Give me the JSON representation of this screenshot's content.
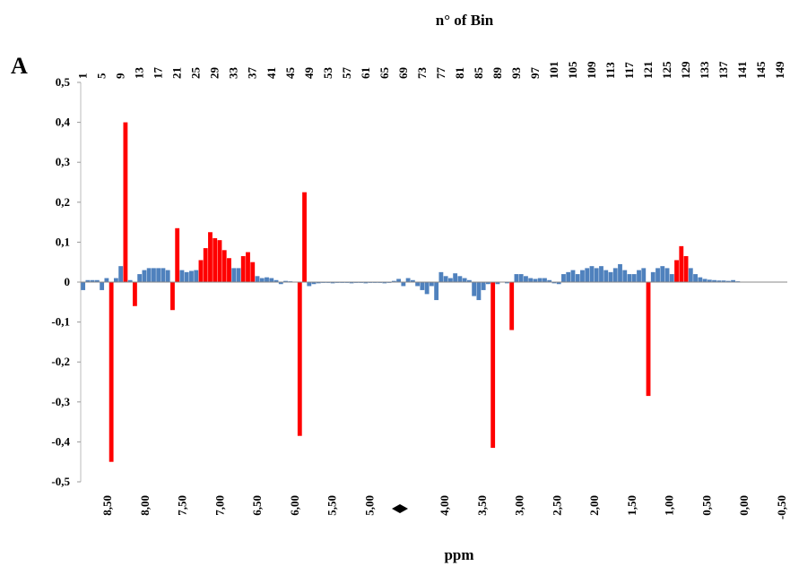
{
  "chart_data": {
    "type": "bar",
    "panel_label": "A",
    "title": "n° of Bin",
    "xlabel": "ppm",
    "x": [
      1,
      2,
      3,
      4,
      5,
      6,
      7,
      8,
      9,
      10,
      11,
      12,
      13,
      14,
      15,
      16,
      17,
      18,
      19,
      20,
      21,
      22,
      23,
      24,
      25,
      26,
      27,
      28,
      29,
      30,
      31,
      32,
      33,
      34,
      35,
      36,
      37,
      38,
      39,
      40,
      41,
      42,
      43,
      44,
      45,
      46,
      47,
      48,
      49,
      50,
      51,
      52,
      53,
      54,
      55,
      56,
      57,
      58,
      59,
      60,
      61,
      62,
      63,
      64,
      65,
      66,
      67,
      68,
      69,
      70,
      71,
      72,
      73,
      74,
      75,
      76,
      77,
      78,
      79,
      80,
      81,
      82,
      83,
      84,
      85,
      86,
      87,
      88,
      89,
      90,
      91,
      92,
      93,
      94,
      95,
      96,
      97,
      98,
      99,
      100,
      101,
      102,
      103,
      104,
      105,
      106,
      107,
      108,
      109,
      110,
      111,
      112,
      113,
      114,
      115,
      116,
      117,
      118,
      119,
      120,
      121,
      122,
      123,
      124,
      125,
      126,
      127,
      128,
      129,
      130,
      131,
      132,
      133,
      134,
      135,
      136,
      137,
      138,
      139,
      140,
      141,
      142,
      143,
      144,
      145,
      146,
      147,
      148,
      149,
      150
    ],
    "values": [
      -0.02,
      0.005,
      0.005,
      0.005,
      -0.02,
      0.01,
      -0.45,
      0.01,
      0.04,
      0.4,
      0.005,
      -0.06,
      0.02,
      0.03,
      0.035,
      0.035,
      0.035,
      0.035,
      0.03,
      -0.07,
      0.135,
      0.03,
      0.025,
      0.028,
      0.03,
      0.055,
      0.085,
      0.125,
      0.11,
      0.105,
      0.08,
      0.06,
      0.035,
      0.035,
      0.065,
      0.075,
      0.05,
      0.015,
      0.01,
      0.012,
      0.01,
      0.005,
      -0.005,
      0.003,
      0.002,
      0.001,
      -0.385,
      0.225,
      -0.01,
      -0.005,
      -0.003,
      -0.002,
      -0.002,
      -0.003,
      -0.002,
      -0.002,
      -0.002,
      -0.003,
      -0.002,
      -0.002,
      -0.003,
      -0.002,
      -0.002,
      -0.002,
      -0.003,
      -0.002,
      0.003,
      0.008,
      -0.01,
      0.01,
      0.005,
      -0.01,
      -0.02,
      -0.03,
      -0.01,
      -0.045,
      0.025,
      0.015,
      0.01,
      0.022,
      0.015,
      0.01,
      0.005,
      -0.035,
      -0.045,
      -0.02,
      -0.005,
      -0.415,
      -0.005,
      0,
      -0.003,
      -0.12,
      0.02,
      0.02,
      0.015,
      0.01,
      0.008,
      0.01,
      0.01,
      0.005,
      -0.003,
      -0.005,
      0.02,
      0.025,
      0.03,
      0.02,
      0.03,
      0.035,
      0.04,
      0.035,
      0.04,
      0.03,
      0.025,
      0.035,
      0.045,
      0.03,
      0.02,
      0.02,
      0.03,
      0.035,
      -0.285,
      0.025,
      0.035,
      0.04,
      0.035,
      0.02,
      0.055,
      0.09,
      0.065,
      0.035,
      0.02,
      0.012,
      0.008,
      0.006,
      0.005,
      0.004,
      0.004,
      0.003,
      0.005,
      0.002,
      0.001,
      0.001,
      0.001,
      0.001,
      0.001,
      0,
      0,
      0,
      0,
      0
    ],
    "colors": [
      "#4f81bd",
      "#4f81bd",
      "#4f81bd",
      "#4f81bd",
      "#4f81bd",
      "#4f81bd",
      "#ff0000",
      "#4f81bd",
      "#4f81bd",
      "#ff0000",
      "#4f81bd",
      "#ff0000",
      "#4f81bd",
      "#4f81bd",
      "#4f81bd",
      "#4f81bd",
      "#4f81bd",
      "#4f81bd",
      "#4f81bd",
      "#ff0000",
      "#ff0000",
      "#4f81bd",
      "#4f81bd",
      "#4f81bd",
      "#4f81bd",
      "#ff0000",
      "#ff0000",
      "#ff0000",
      "#ff0000",
      "#ff0000",
      "#ff0000",
      "#ff0000",
      "#4f81bd",
      "#4f81bd",
      "#ff0000",
      "#ff0000",
      "#ff0000",
      "#4f81bd",
      "#4f81bd",
      "#4f81bd",
      "#4f81bd",
      "#4f81bd",
      "#4f81bd",
      "#4f81bd",
      "#4f81bd",
      "#4f81bd",
      "#ff0000",
      "#ff0000",
      "#4f81bd",
      "#4f81bd",
      "#4f81bd",
      "#4f81bd",
      "#4f81bd",
      "#4f81bd",
      "#4f81bd",
      "#4f81bd",
      "#4f81bd",
      "#4f81bd",
      "#4f81bd",
      "#4f81bd",
      "#4f81bd",
      "#4f81bd",
      "#4f81bd",
      "#4f81bd",
      "#4f81bd",
      "#4f81bd",
      "#4f81bd",
      "#4f81bd",
      "#4f81bd",
      "#4f81bd",
      "#4f81bd",
      "#4f81bd",
      "#4f81bd",
      "#4f81bd",
      "#4f81bd",
      "#4f81bd",
      "#4f81bd",
      "#4f81bd",
      "#4f81bd",
      "#4f81bd",
      "#4f81bd",
      "#4f81bd",
      "#4f81bd",
      "#4f81bd",
      "#4f81bd",
      "#4f81bd",
      "#4f81bd",
      "#ff0000",
      "#4f81bd",
      "#4f81bd",
      "#4f81bd",
      "#ff0000",
      "#4f81bd",
      "#4f81bd",
      "#4f81bd",
      "#4f81bd",
      "#4f81bd",
      "#4f81bd",
      "#4f81bd",
      "#4f81bd",
      "#4f81bd",
      "#4f81bd",
      "#4f81bd",
      "#4f81bd",
      "#4f81bd",
      "#4f81bd",
      "#4f81bd",
      "#4f81bd",
      "#4f81bd",
      "#4f81bd",
      "#4f81bd",
      "#4f81bd",
      "#4f81bd",
      "#4f81bd",
      "#4f81bd",
      "#4f81bd",
      "#4f81bd",
      "#4f81bd",
      "#4f81bd",
      "#4f81bd",
      "#ff0000",
      "#4f81bd",
      "#4f81bd",
      "#4f81bd",
      "#4f81bd",
      "#4f81bd",
      "#ff0000",
      "#ff0000",
      "#ff0000",
      "#4f81bd",
      "#4f81bd",
      "#4f81bd",
      "#4f81bd",
      "#4f81bd",
      "#4f81bd",
      "#4f81bd",
      "#4f81bd",
      "#4f81bd",
      "#4f81bd",
      "#4f81bd",
      "#4f81bd",
      "#4f81bd",
      "#4f81bd",
      "#4f81bd",
      "#4f81bd",
      "#4f81bd",
      "#4f81bd",
      "#4f81bd",
      "#4f81bd",
      "#4f81bd"
    ],
    "xlim": [
      0.5,
      150.5
    ],
    "xticks": [
      1,
      5,
      9,
      13,
      17,
      21,
      25,
      29,
      33,
      37,
      41,
      45,
      49,
      53,
      57,
      61,
      65,
      69,
      73,
      77,
      81,
      85,
      89,
      93,
      97,
      101,
      105,
      109,
      113,
      117,
      121,
      125,
      129,
      133,
      137,
      141,
      145,
      149
    ],
    "ylim": [
      -0.5,
      0.5
    ],
    "yticks": [
      {
        "value": 0.5,
        "label": "0,5"
      },
      {
        "value": 0.4,
        "label": "0,4"
      },
      {
        "value": 0.3,
        "label": "0,3"
      },
      {
        "value": 0.2,
        "label": "0,2"
      },
      {
        "value": 0.1,
        "label": "0,1"
      },
      0,
      {
        "value": -0.1,
        "label": "-0,1"
      },
      {
        "value": -0.2,
        "label": "-0,2"
      },
      {
        "value": -0.3,
        "label": "-0,3"
      },
      {
        "value": -0.4,
        "label": "-0,4"
      },
      {
        "value": -0.5,
        "label": "-0,5"
      }
    ],
    "ppm_labels": [
      "8,50",
      "8,00",
      "7,50",
      "7,00",
      "6,50",
      "6,00",
      "5,50",
      "5,00",
      "4,00",
      "3,50",
      "3,00",
      "2,50",
      "2,00",
      "1,50",
      "1,00",
      "0,50",
      "0,00",
      "-0,50"
    ]
  }
}
